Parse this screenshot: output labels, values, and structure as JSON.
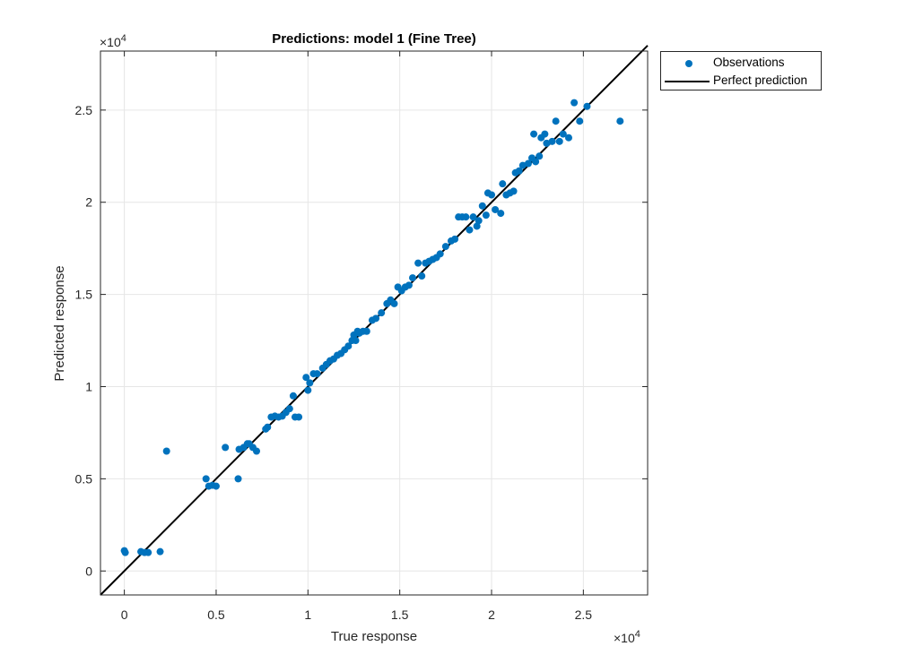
{
  "chart_data": {
    "type": "scatter",
    "title": "Predictions: model 1 (Fine Tree)",
    "xlabel": "True response",
    "ylabel": "Predicted response",
    "x_exponent_label": "×10",
    "x_exponent_power": "4",
    "y_exponent_label": "×10",
    "y_exponent_power": "4",
    "xlim": [
      -1300,
      28500
    ],
    "ylim": [
      -1300,
      28200
    ],
    "x_ticks": [
      0,
      5000,
      10000,
      15000,
      20000,
      25000
    ],
    "x_tick_labels": [
      "0",
      "0.5",
      "1",
      "1.5",
      "2",
      "2.5"
    ],
    "y_ticks": [
      0,
      5000,
      10000,
      15000,
      20000,
      25000
    ],
    "y_tick_labels": [
      "0",
      "0.5",
      "1",
      "1.5",
      "2",
      "2.5"
    ],
    "grid": true,
    "legend_position": "outside-top-right",
    "colors": {
      "observations": "#0072BD",
      "perfect": "#000000",
      "grid": "#e6e6e6",
      "axes": "#262626"
    },
    "series": [
      {
        "name": "Observations",
        "kind": "scatter",
        "points": [
          [
            0,
            1100
          ],
          [
            50,
            1000
          ],
          [
            900,
            1050
          ],
          [
            1100,
            1000
          ],
          [
            1300,
            1000
          ],
          [
            1950,
            1050
          ],
          [
            2300,
            6500
          ],
          [
            4450,
            5000
          ],
          [
            4600,
            4600
          ],
          [
            4800,
            4650
          ],
          [
            5000,
            4600
          ],
          [
            5500,
            6700
          ],
          [
            6200,
            5000
          ],
          [
            6250,
            6600
          ],
          [
            6500,
            6700
          ],
          [
            6700,
            6900
          ],
          [
            6800,
            6900
          ],
          [
            7000,
            6700
          ],
          [
            7200,
            6500
          ],
          [
            7700,
            7700
          ],
          [
            7800,
            7800
          ],
          [
            8000,
            8350
          ],
          [
            8200,
            8400
          ],
          [
            8400,
            8350
          ],
          [
            8600,
            8400
          ],
          [
            8800,
            8600
          ],
          [
            9000,
            8800
          ],
          [
            9200,
            9500
          ],
          [
            9300,
            8350
          ],
          [
            9500,
            8350
          ],
          [
            9900,
            10500
          ],
          [
            10000,
            9800
          ],
          [
            10100,
            10200
          ],
          [
            10300,
            10700
          ],
          [
            10500,
            10700
          ],
          [
            10800,
            11000
          ],
          [
            11000,
            11200
          ],
          [
            11200,
            11400
          ],
          [
            11400,
            11500
          ],
          [
            11600,
            11700
          ],
          [
            11800,
            11800
          ],
          [
            12000,
            12000
          ],
          [
            12200,
            12200
          ],
          [
            12400,
            12500
          ],
          [
            12500,
            12800
          ],
          [
            12600,
            12500
          ],
          [
            12700,
            13000
          ],
          [
            12800,
            12900
          ],
          [
            13000,
            13000
          ],
          [
            13200,
            13000
          ],
          [
            13500,
            13600
          ],
          [
            13700,
            13700
          ],
          [
            14000,
            14000
          ],
          [
            14300,
            14500
          ],
          [
            14500,
            14700
          ],
          [
            14700,
            14500
          ],
          [
            14900,
            15400
          ],
          [
            15100,
            15200
          ],
          [
            15300,
            15400
          ],
          [
            15500,
            15500
          ],
          [
            15700,
            15900
          ],
          [
            16000,
            16700
          ],
          [
            16200,
            16000
          ],
          [
            16400,
            16700
          ],
          [
            16600,
            16800
          ],
          [
            16800,
            16900
          ],
          [
            17000,
            17000
          ],
          [
            17200,
            17200
          ],
          [
            17500,
            17600
          ],
          [
            17800,
            17900
          ],
          [
            18000,
            18000
          ],
          [
            18200,
            19200
          ],
          [
            18400,
            19200
          ],
          [
            18600,
            19200
          ],
          [
            18800,
            18500
          ],
          [
            19000,
            19200
          ],
          [
            19200,
            18700
          ],
          [
            19300,
            19000
          ],
          [
            19500,
            19800
          ],
          [
            19700,
            19300
          ],
          [
            19800,
            20500
          ],
          [
            20000,
            20400
          ],
          [
            20200,
            19600
          ],
          [
            20500,
            19400
          ],
          [
            20600,
            21000
          ],
          [
            20800,
            20400
          ],
          [
            21000,
            20500
          ],
          [
            21200,
            20600
          ],
          [
            21300,
            21600
          ],
          [
            21500,
            21700
          ],
          [
            21700,
            22000
          ],
          [
            22000,
            22100
          ],
          [
            22200,
            22400
          ],
          [
            22300,
            23700
          ],
          [
            22400,
            22200
          ],
          [
            22600,
            22500
          ],
          [
            22700,
            23500
          ],
          [
            22900,
            23700
          ],
          [
            23000,
            23200
          ],
          [
            23300,
            23300
          ],
          [
            23500,
            24400
          ],
          [
            23700,
            23300
          ],
          [
            23900,
            23700
          ],
          [
            24200,
            23500
          ],
          [
            24500,
            25400
          ],
          [
            24800,
            24400
          ],
          [
            25200,
            25200
          ],
          [
            27000,
            24400
          ]
        ]
      },
      {
        "name": "Perfect prediction",
        "kind": "line",
        "from": [
          -1300,
          -1300
        ],
        "to": [
          28500,
          28500
        ]
      }
    ]
  }
}
